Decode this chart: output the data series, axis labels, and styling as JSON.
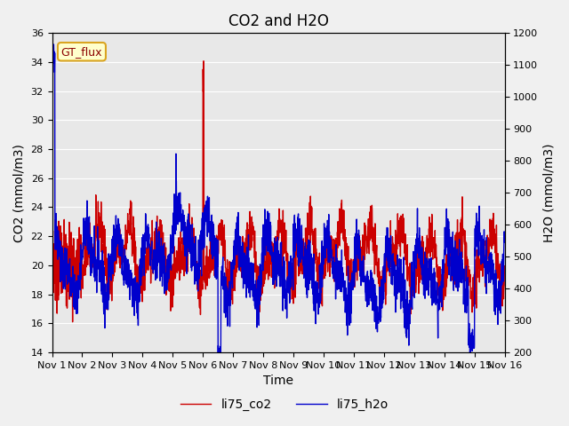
{
  "title": "CO2 and H2O",
  "xlabel": "Time",
  "ylabel_left": "CO2 (mmol/m3)",
  "ylabel_right": "H2O (mmol/m3)",
  "ylim_left": [
    14,
    36
  ],
  "ylim_right": [
    200,
    1200
  ],
  "yticks_left": [
    14,
    16,
    18,
    20,
    22,
    24,
    26,
    28,
    30,
    32,
    34,
    36
  ],
  "yticks_right": [
    200,
    300,
    400,
    500,
    600,
    700,
    800,
    900,
    1000,
    1100,
    1200
  ],
  "xtick_labels": [
    "Nov 1",
    "Nov 2",
    "Nov 3",
    "Nov 4",
    "Nov 5",
    "Nov 6",
    "Nov 7",
    "Nov 8",
    "Nov 9",
    "Nov 10",
    "Nov 11",
    "Nov 12",
    "Nov 13",
    "Nov 14",
    "Nov 15",
    "Nov 16"
  ],
  "legend_label_co2": "li75_co2",
  "legend_label_h2o": "li75_h2o",
  "color_co2": "#cc0000",
  "color_h2o": "#0000cc",
  "annotation_text": "GT_flux",
  "plot_bg_color": "#e8e8e8",
  "linewidth": 1.0,
  "n_days": 15,
  "points_per_day": 144
}
